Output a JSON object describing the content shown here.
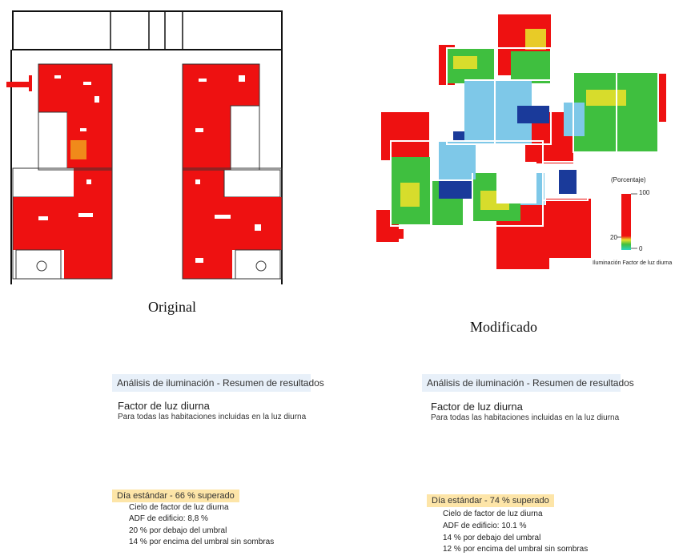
{
  "captions": {
    "original": "Original",
    "modified": "Modificado"
  },
  "legend": {
    "unit": "(Porcentaje)",
    "max": "100",
    "mid": "20",
    "min": "0",
    "title": "Iluminación Factor de luz diurna"
  },
  "panels": [
    {
      "header": "Análisis de iluminación - Resumen de resultados",
      "metric_title": "Factor de luz diurna",
      "metric_subtitle": "Para todas las habitaciones incluidas en la luz diurna",
      "standard": "Día estándar  - 66 % superado",
      "details": [
        "Cielo de factor de luz diurna",
        "ADF de edificio: 8,8 %",
        "20 % por debajo del umbral",
        "14 % por encima del umbral sin sombras"
      ]
    },
    {
      "header": "Análisis de iluminación - Resumen de resultados",
      "metric_title": "Factor de luz diurna",
      "metric_subtitle": "Para todas las habitaciones incluidas en la luz diurna",
      "standard": "Día estándar  - 74 % superado",
      "details": [
        "Cielo de factor de luz diurna",
        "ADF de edificio: 10.1 %",
        "14 % por debajo del umbral",
        "12 % por encima del umbral sin sombras"
      ]
    }
  ],
  "colors": {
    "red": "#ee1111",
    "green": "#3fbf3f",
    "yellow": "#e8e02a",
    "cyan": "#7ec8e8",
    "navy": "#1a3a9a",
    "header_bg": "#e8f0f9",
    "badge_bg": "#fde5a8"
  }
}
